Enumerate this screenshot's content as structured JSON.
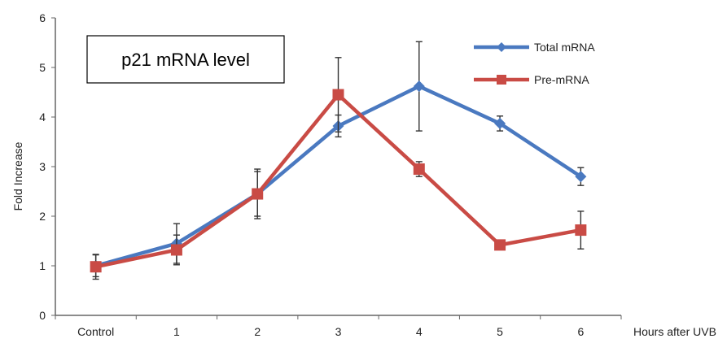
{
  "chart_data": {
    "type": "line",
    "title": "p21 mRNA level",
    "xlabel": "Hours after UVB",
    "ylabel": "Fold Increase",
    "categories": [
      "Control",
      "1",
      "2",
      "3",
      "4",
      "5",
      "6"
    ],
    "ylim": [
      0,
      6
    ],
    "yticks": [
      "0",
      "1",
      "2",
      "3",
      "4",
      "5",
      "6"
    ],
    "grid": false,
    "legend_position": "top-right",
    "series": [
      {
        "name": "Total mRNA",
        "color": "#4A79C0",
        "marker": "diamond",
        "values": [
          1.0,
          1.45,
          2.45,
          3.82,
          4.62,
          3.87,
          2.8
        ],
        "error": [
          0.22,
          0.4,
          0.5,
          0.22,
          0.9,
          0.15,
          0.18
        ]
      },
      {
        "name": "Pre-mRNA",
        "color": "#C94B45",
        "marker": "square",
        "values": [
          0.98,
          1.32,
          2.45,
          4.45,
          2.95,
          1.42,
          1.72
        ],
        "error": [
          0.25,
          0.3,
          0.45,
          0.75,
          0.15,
          0.05,
          0.38
        ]
      }
    ]
  }
}
